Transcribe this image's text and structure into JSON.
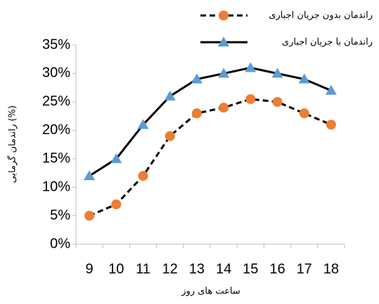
{
  "chart_data": {
    "type": "line",
    "x_label": "ساعت های روز",
    "y_label": "راندمان گرمایی (%)",
    "categories": [
      "9",
      "10",
      "11",
      "12",
      "13",
      "14",
      "15",
      "16",
      "17",
      "18"
    ],
    "series": [
      {
        "name": "راندمان بدون جریان اجباری",
        "color": "#ED7D31",
        "line_color": "#000000",
        "line_style": "dashed",
        "marker": "circle",
        "values": [
          5,
          7,
          12,
          19,
          23,
          24,
          25.5,
          25,
          23,
          21
        ]
      },
      {
        "name": "راندمان با جریان اجباری",
        "color": "#5B9BD5",
        "line_color": "#000000",
        "line_style": "solid",
        "marker": "triangle",
        "values": [
          12,
          15,
          21,
          26,
          29,
          30,
          31,
          30,
          29,
          27
        ]
      }
    ],
    "ylim": [
      0,
      35
    ],
    "yticks": [
      {
        "value": 0,
        "label": "0%"
      },
      {
        "value": 5,
        "label": "5%"
      },
      {
        "value": 10,
        "label": "10%"
      },
      {
        "value": 15,
        "label": "15%"
      },
      {
        "value": 20,
        "label": "20%"
      },
      {
        "value": 25,
        "label": "25%"
      },
      {
        "value": 30,
        "label": "30%"
      },
      {
        "value": 35,
        "label": "35%"
      }
    ],
    "grid": false,
    "legend": "top-right"
  }
}
